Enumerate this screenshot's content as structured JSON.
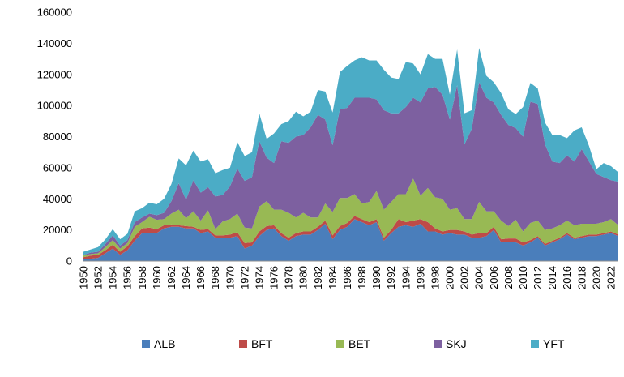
{
  "chart_data": {
    "type": "area",
    "stacked": true,
    "title": "",
    "xlabel": "",
    "ylabel": "",
    "ylim": [
      0,
      160000
    ],
    "yticks": [
      0,
      20000,
      40000,
      60000,
      80000,
      100000,
      120000,
      140000,
      160000
    ],
    "x": [
      1950,
      1951,
      1952,
      1953,
      1954,
      1955,
      1956,
      1957,
      1958,
      1959,
      1960,
      1961,
      1962,
      1963,
      1964,
      1965,
      1966,
      1967,
      1968,
      1969,
      1970,
      1971,
      1972,
      1973,
      1974,
      1975,
      1976,
      1977,
      1978,
      1979,
      1980,
      1981,
      1982,
      1983,
      1984,
      1985,
      1986,
      1987,
      1988,
      1989,
      1990,
      1991,
      1992,
      1993,
      1994,
      1995,
      1996,
      1997,
      1998,
      1999,
      2000,
      2001,
      2002,
      2003,
      2004,
      2005,
      2006,
      2007,
      2008,
      2009,
      2010,
      2011,
      2012,
      2013,
      2014,
      2015,
      2016,
      2017,
      2018,
      2019,
      2020,
      2021,
      2022,
      2023
    ],
    "x_tick_labels": [
      "1950",
      "1952",
      "1954",
      "1956",
      "1958",
      "1960",
      "1962",
      "1964",
      "1966",
      "1968",
      "1970",
      "1972",
      "1974",
      "1976",
      "1978",
      "1980",
      "1982",
      "1984",
      "1986",
      "1988",
      "1990",
      "1992",
      "1994",
      "1996",
      "1998",
      "2000",
      "2002",
      "2004",
      "2006",
      "2008",
      "2010",
      "2012",
      "2014",
      "2016",
      "2018",
      "2020",
      "2022"
    ],
    "legend_position": "bottom",
    "grid": false,
    "series": [
      {
        "name": "ALB",
        "color": "#4a7ebb",
        "values": [
          1000,
          1500,
          2000,
          5000,
          8000,
          4000,
          7000,
          13000,
          18000,
          18000,
          18000,
          21000,
          22000,
          22000,
          21000,
          21000,
          18000,
          19000,
          15000,
          15000,
          15000,
          16000,
          8000,
          10000,
          16000,
          20000,
          21000,
          16000,
          13000,
          16000,
          17000,
          17000,
          20000,
          24000,
          14000,
          20000,
          22000,
          27000,
          25000,
          23000,
          25000,
          13000,
          18000,
          22000,
          23000,
          22000,
          24000,
          19000,
          19000,
          17000,
          18000,
          17000,
          17000,
          15000,
          15000,
          16000,
          20000,
          12000,
          12000,
          12000,
          10000,
          12000,
          15000,
          10000,
          12000,
          14000,
          17000,
          14000,
          15000,
          16000,
          16000,
          17000,
          18000,
          16000
        ]
      },
      {
        "name": "BFT",
        "color": "#be4b48",
        "values": [
          1500,
          2000,
          2000,
          2000,
          2500,
          2000,
          2500,
          3000,
          3000,
          3500,
          2500,
          2000,
          1500,
          1000,
          1500,
          1000,
          2000,
          1500,
          1500,
          1500,
          2000,
          2500,
          3500,
          2000,
          3000,
          2500,
          2000,
          2000,
          2000,
          2000,
          2000,
          2000,
          2000,
          2000,
          2500,
          2500,
          2500,
          2000,
          2000,
          2000,
          2000,
          2000,
          2000,
          5000,
          2000,
          4000,
          3000,
          6000,
          2000,
          2000,
          2000,
          3000,
          2000,
          2000,
          3000,
          2000,
          2000,
          2000,
          2500,
          2500,
          2000,
          1500,
          1000,
          1000,
          1000,
          1000,
          1000,
          1000,
          1000,
          1000,
          1000,
          1000,
          1000,
          1000
        ]
      },
      {
        "name": "BET",
        "color": "#98b954",
        "values": [
          1000,
          1000,
          1000,
          2000,
          3000,
          2000,
          2000,
          6000,
          4000,
          7000,
          6000,
          4000,
          7000,
          10000,
          5000,
          10000,
          6000,
          12000,
          4000,
          9000,
          10000,
          12000,
          10000,
          9000,
          16000,
          16000,
          10000,
          15000,
          16000,
          10000,
          12000,
          9000,
          6000,
          11000,
          15000,
          18000,
          16000,
          14000,
          10000,
          13000,
          18000,
          18000,
          18000,
          16000,
          18000,
          27000,
          15000,
          22000,
          20000,
          21000,
          13000,
          14000,
          8000,
          10000,
          20000,
          14000,
          10000,
          12000,
          8000,
          12000,
          7000,
          11000,
          10000,
          9000,
          8000,
          8000,
          8000,
          8000,
          8000,
          7000,
          7000,
          7000,
          8000,
          6000
        ]
      },
      {
        "name": "SKJ",
        "color": "#7d60a0",
        "values": [
          500,
          1000,
          1000,
          2000,
          3000,
          2000,
          2000,
          3000,
          3000,
          2000,
          3000,
          4000,
          8000,
          17000,
          12000,
          20000,
          18000,
          15000,
          21000,
          17000,
          21000,
          29000,
          30000,
          33000,
          42000,
          28000,
          30000,
          44000,
          45000,
          52000,
          50000,
          58000,
          66000,
          54000,
          43000,
          57000,
          58000,
          62000,
          68000,
          67000,
          59000,
          64000,
          57000,
          52000,
          56000,
          52000,
          60000,
          64000,
          71000,
          67000,
          58000,
          79000,
          48000,
          58000,
          77000,
          73000,
          70000,
          68000,
          65000,
          59000,
          61000,
          78000,
          75000,
          55000,
          43000,
          40000,
          42000,
          41000,
          48000,
          40000,
          32000,
          29000,
          25000,
          28000
        ]
      },
      {
        "name": "YFT",
        "color": "#4bacc6",
        "values": [
          2000,
          2000,
          3000,
          3000,
          4000,
          4000,
          4000,
          7000,
          6000,
          7000,
          7000,
          9000,
          11000,
          16000,
          22000,
          19000,
          20000,
          18000,
          15000,
          16000,
          12000,
          17000,
          16000,
          16000,
          18000,
          12000,
          19000,
          11000,
          14000,
          16000,
          12000,
          10000,
          16000,
          18000,
          21000,
          24000,
          27000,
          24000,
          26000,
          24000,
          25000,
          26000,
          23000,
          22000,
          29000,
          22000,
          18000,
          22000,
          18000,
          23000,
          16000,
          23000,
          20000,
          12000,
          22000,
          14000,
          13000,
          14000,
          10000,
          9000,
          19000,
          12000,
          10000,
          14000,
          17000,
          18000,
          11000,
          20000,
          14000,
          10000,
          3000,
          9000,
          9000,
          6000
        ]
      }
    ]
  }
}
